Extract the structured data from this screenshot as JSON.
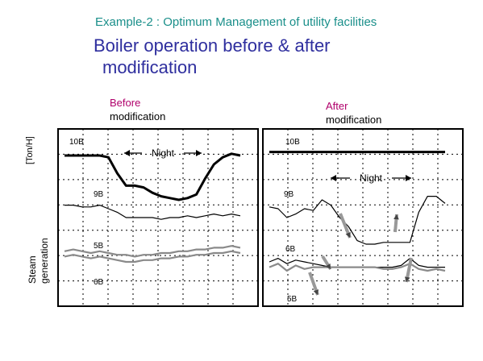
{
  "header": {
    "subtitle": "Example-2 : Optimum Management of utility facilities",
    "title_line1": "Boiler operation before & after",
    "title_line2": "modification"
  },
  "labels": {
    "before_red": "Before",
    "before_black": "modification",
    "after_red": "After",
    "after_black": "modification",
    "y_unit": "[Ton/H]",
    "steam_line1": "Steam",
    "steam_line2": "generation"
  },
  "colors": {
    "subtitle": "#1a8f8a",
    "title": "#2e2e9e",
    "accent_label": "#b0006b",
    "trace": "#000000",
    "trace_grey": "#8a8a8a",
    "arrow_fill": "#999999"
  },
  "chart_data": [
    {
      "type": "line",
      "panel": "before",
      "x": [
        0,
        5,
        10,
        15,
        20,
        25,
        30,
        35,
        40,
        45,
        50,
        55,
        60,
        65,
        70,
        75,
        80,
        85,
        90,
        95,
        100
      ],
      "series": [
        {
          "name": "10B",
          "values": [
            85,
            85,
            85,
            85,
            85,
            84,
            75,
            68,
            68,
            67,
            64,
            62,
            61,
            60,
            61,
            63,
            72,
            80,
            84,
            86,
            85
          ]
        },
        {
          "name": "9B",
          "values": [
            57,
            57,
            56,
            56,
            57,
            55,
            53,
            50,
            50,
            50,
            50,
            49,
            50,
            50,
            51,
            50,
            51,
            52,
            51,
            52,
            51
          ]
        },
        {
          "name": "5B",
          "values": [
            31,
            32,
            31,
            30,
            31,
            30,
            29,
            29,
            28,
            29,
            29,
            30,
            30,
            31,
            31,
            32,
            32,
            33,
            33,
            34,
            33
          ]
        },
        {
          "name": "6B",
          "values": [
            28,
            29,
            28,
            27,
            28,
            27,
            26,
            25,
            25,
            26,
            26,
            27,
            27,
            28,
            28,
            29,
            29,
            30,
            30,
            31,
            30
          ]
        }
      ],
      "annotations": [
        "Night"
      ]
    },
    {
      "type": "line",
      "panel": "after",
      "x": [
        0,
        5,
        10,
        15,
        20,
        25,
        30,
        35,
        40,
        45,
        50,
        55,
        60,
        65,
        70,
        75,
        80,
        85,
        90,
        95,
        100
      ],
      "series": [
        {
          "name": "10B",
          "values": [
            87,
            87,
            87,
            87,
            87,
            87,
            87,
            87,
            87,
            87,
            87,
            87,
            87,
            87,
            87,
            87,
            87,
            87,
            87,
            87,
            87
          ]
        },
        {
          "name": "9B",
          "values": [
            56,
            55,
            50,
            52,
            55,
            54,
            60,
            57,
            50,
            45,
            37,
            35,
            35,
            36,
            36,
            36,
            36,
            53,
            62,
            62,
            58
          ]
        },
        {
          "name": "6B",
          "values": [
            25,
            27,
            24,
            26,
            25,
            24,
            23,
            22,
            22,
            22,
            22,
            22,
            22,
            22,
            22,
            23,
            27,
            23,
            22,
            22,
            22
          ]
        },
        {
          "name": "5B",
          "values": [
            22,
            24,
            20,
            23,
            21,
            22,
            22,
            22,
            22,
            22,
            22,
            22,
            22,
            21,
            21,
            22,
            24,
            21,
            20,
            21,
            20
          ]
        }
      ],
      "annotations": [
        "Night"
      ]
    }
  ]
}
